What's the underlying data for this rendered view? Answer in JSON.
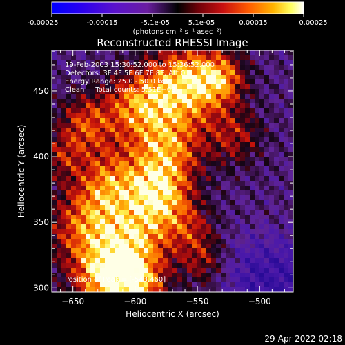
{
  "colorbar": {
    "ticks": [
      "-0.00025",
      "-0.00015",
      "-5.1e-05",
      "5.1e-05",
      "0.00015",
      "0.00025"
    ],
    "units": "(photons cm⁻² s⁻¹ asec⁻²)",
    "range": [
      -0.00025,
      0.00025
    ]
  },
  "chart_data": {
    "type": "heatmap",
    "title": "Reconstructed RHESSI Image",
    "xlabel": "Heliocentric X (arcsec)",
    "ylabel": "Heliocentric Y (arcsec)",
    "xlim": [
      -667,
      -473
    ],
    "ylim": [
      297,
      481
    ],
    "xticks": [
      -650,
      -600,
      -550,
      -500
    ],
    "yticks": [
      300,
      350,
      400,
      450
    ],
    "grid": false,
    "colormap": "fire",
    "annotations": [
      "19-Feb-2003 15:30:52.000 to 15:36:52.000",
      "Detectors: 3F 4F 5F 6F 7F 8F, Att 0",
      "Energy Range: 25.0 - 50.0 keV",
      "Clean     Total counts: 5.51E+03"
    ],
    "peak_label": "Position of Peak = [-543,460]",
    "peak": [
      -543,
      460
    ]
  },
  "footer": {
    "timestamp": "29-Apr-2022 02:18"
  }
}
